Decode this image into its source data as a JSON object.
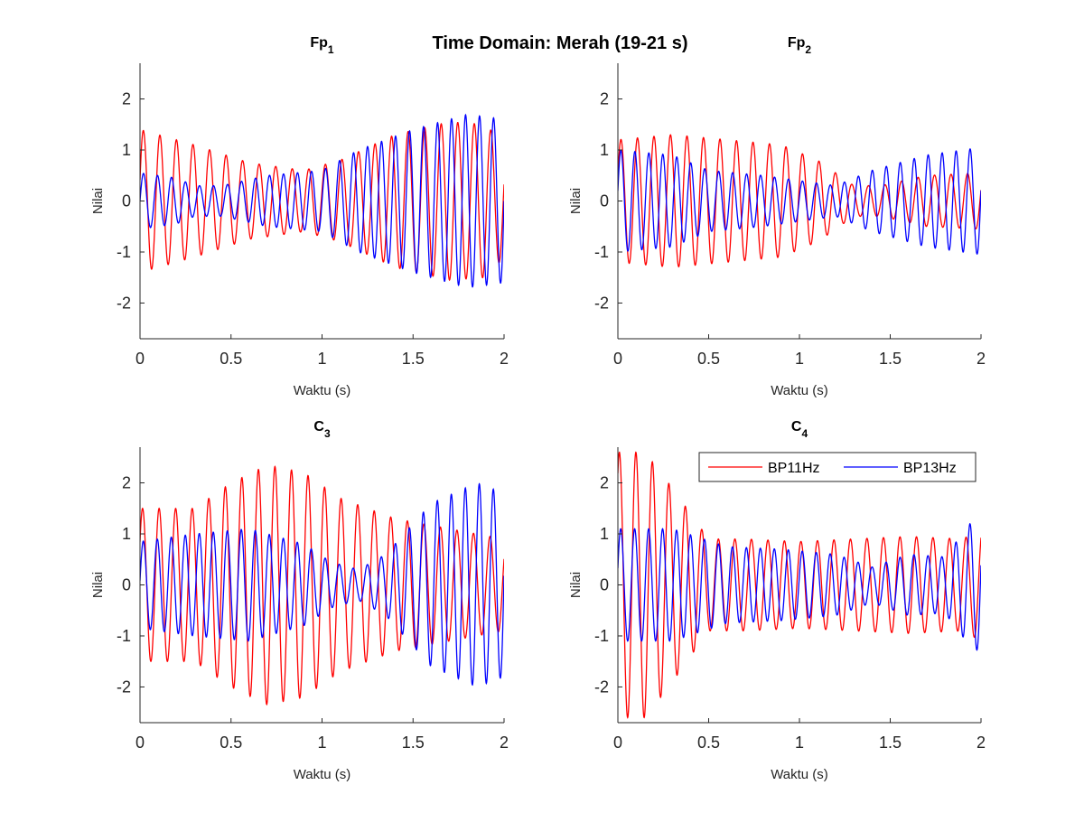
{
  "figure": {
    "suptitle": "Time Domain: Merah (19-21 s)",
    "background": "#ffffff"
  },
  "legend": {
    "location": "top-right of C4 subplot",
    "entries": [
      "BP11Hz",
      "BP13Hz"
    ]
  },
  "colors": {
    "BP11Hz": "#ff0000",
    "BP13Hz": "#0000ff",
    "axis": "#262626"
  },
  "chart_data": [
    {
      "type": "line",
      "title": {
        "base": "Fp",
        "sub": "1"
      },
      "xlabel": "Waktu (s)",
      "ylabel": "Nilai",
      "xlim": [
        0,
        2
      ],
      "ylim": [
        -2.7,
        2.7
      ],
      "xticks": [
        "0",
        "0.5",
        "1",
        "1.5",
        "2"
      ],
      "yticks": [
        "-2",
        "-1",
        "0",
        "1",
        "2"
      ],
      "grid": false,
      "series": [
        {
          "name": "BP11Hz",
          "freq_hz": 11,
          "phase": 0.3,
          "envelope": [
            [
              0,
              1.4
            ],
            [
              0.3,
              1.1
            ],
            [
              0.6,
              0.75
            ],
            [
              0.9,
              0.6
            ],
            [
              1.1,
              0.8
            ],
            [
              1.4,
              1.3
            ],
            [
              1.7,
              1.55
            ],
            [
              1.9,
              1.5
            ],
            [
              2.0,
              1.1
            ]
          ]
        },
        {
          "name": "BP13Hz",
          "freq_hz": 13,
          "phase": 0.0,
          "envelope": [
            [
              0,
              0.55
            ],
            [
              0.2,
              0.45
            ],
            [
              0.3,
              0.3
            ],
            [
              0.45,
              0.3
            ],
            [
              0.7,
              0.5
            ],
            [
              1.0,
              0.6
            ],
            [
              1.2,
              1.0
            ],
            [
              1.5,
              1.4
            ],
            [
              1.8,
              1.7
            ],
            [
              2.0,
              1.6
            ]
          ]
        }
      ]
    },
    {
      "type": "line",
      "title": {
        "base": "Fp",
        "sub": "2"
      },
      "xlabel": "Waktu (s)",
      "ylabel": "Nilai",
      "xlim": [
        0,
        2
      ],
      "ylim": [
        -2.7,
        2.7
      ],
      "xticks": [
        "0",
        "0.5",
        "1",
        "1.5",
        "2"
      ],
      "yticks": [
        "-2",
        "-1",
        "0",
        "1",
        "2"
      ],
      "grid": false,
      "series": [
        {
          "name": "BP11Hz",
          "freq_hz": 11,
          "phase": 0.4,
          "envelope": [
            [
              0,
              1.2
            ],
            [
              0.3,
              1.3
            ],
            [
              0.6,
              1.2
            ],
            [
              0.9,
              1.1
            ],
            [
              1.1,
              0.8
            ],
            [
              1.3,
              0.3
            ],
            [
              1.45,
              0.3
            ],
            [
              1.7,
              0.5
            ],
            [
              2.0,
              0.55
            ]
          ]
        },
        {
          "name": "BP13Hz",
          "freq_hz": 13,
          "phase": 0.2,
          "envelope": [
            [
              0,
              1.0
            ],
            [
              0.3,
              0.9
            ],
            [
              0.5,
              0.6
            ],
            [
              0.8,
              0.5
            ],
            [
              1.0,
              0.4
            ],
            [
              1.2,
              0.3
            ],
            [
              1.4,
              0.6
            ],
            [
              1.7,
              0.9
            ],
            [
              2.0,
              1.05
            ]
          ]
        }
      ]
    },
    {
      "type": "line",
      "title": {
        "base": "C",
        "sub": "3"
      },
      "xlabel": "Waktu (s)",
      "ylabel": "Nilai",
      "xlim": [
        0,
        2
      ],
      "ylim": [
        -2.7,
        2.7
      ],
      "xticks": [
        "0",
        "0.5",
        "1",
        "1.5",
        "2"
      ],
      "yticks": [
        "-2",
        "-1",
        "0",
        "1",
        "2"
      ],
      "grid": false,
      "series": [
        {
          "name": "BP11Hz",
          "freq_hz": 11,
          "phase": 0.6,
          "envelope": [
            [
              0,
              1.5
            ],
            [
              0.3,
              1.5
            ],
            [
              0.5,
              2.0
            ],
            [
              0.7,
              2.35
            ],
            [
              0.9,
              2.2
            ],
            [
              1.1,
              1.7
            ],
            [
              1.4,
              1.3
            ],
            [
              1.7,
              1.1
            ],
            [
              2.0,
              0.9
            ]
          ]
        },
        {
          "name": "BP13Hz",
          "freq_hz": 13,
          "phase": 0.1,
          "envelope": [
            [
              0,
              0.85
            ],
            [
              0.3,
              1.0
            ],
            [
              0.6,
              1.1
            ],
            [
              0.9,
              0.8
            ],
            [
              1.05,
              0.45
            ],
            [
              1.2,
              0.3
            ],
            [
              1.35,
              0.6
            ],
            [
              1.6,
              1.6
            ],
            [
              1.85,
              2.0
            ],
            [
              2.0,
              1.8
            ]
          ]
        }
      ]
    },
    {
      "type": "line",
      "title": {
        "base": "C",
        "sub": "4"
      },
      "xlabel": "Waktu (s)",
      "ylabel": "Nilai",
      "xlim": [
        0,
        2
      ],
      "ylim": [
        -2.7,
        2.7
      ],
      "xticks": [
        "0",
        "0.5",
        "1",
        "1.5",
        "2"
      ],
      "yticks": [
        "-2",
        "-1",
        "0",
        "1",
        "2"
      ],
      "grid": false,
      "series": [
        {
          "name": "BP11Hz",
          "freq_hz": 11,
          "phase": 1.0,
          "envelope": [
            [
              0,
              2.6
            ],
            [
              0.15,
              2.6
            ],
            [
              0.3,
              1.9
            ],
            [
              0.5,
              0.9
            ],
            [
              0.7,
              0.9
            ],
            [
              1.0,
              0.85
            ],
            [
              1.3,
              0.9
            ],
            [
              1.6,
              0.95
            ],
            [
              1.9,
              0.9
            ],
            [
              2.0,
              1.1
            ]
          ]
        },
        {
          "name": "BP13Hz",
          "freq_hz": 13,
          "phase": 0.3,
          "envelope": [
            [
              0,
              1.1
            ],
            [
              0.3,
              1.1
            ],
            [
              0.6,
              0.75
            ],
            [
              0.9,
              0.7
            ],
            [
              1.2,
              0.6
            ],
            [
              1.4,
              0.35
            ],
            [
              1.6,
              0.6
            ],
            [
              1.8,
              0.55
            ],
            [
              1.95,
              1.25
            ],
            [
              2.0,
              1.3
            ]
          ]
        }
      ]
    }
  ]
}
